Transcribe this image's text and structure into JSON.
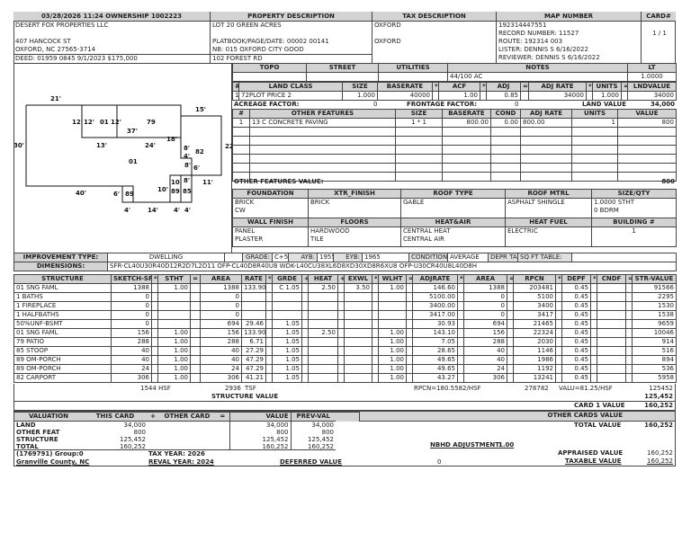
{
  "header": {
    "ownership": "03/28/2026 11:24   OWNERSHIP  1002223",
    "property_desc": "PROPERTY DESCRIPTION",
    "tax_desc": "TAX DESCRIPTION",
    "map_number": "MAP NUMBER",
    "card": "CARD#"
  },
  "owner": [
    "DESERT FOX PROPERTIES LLC",
    "",
    "407 HANCOCK ST",
    "OXFORD, NC 27565-3714",
    "DEED: 01959 0845 9/1/2023 $175,000"
  ],
  "property": [
    "LOT 20 GREEN ACRES",
    "",
    "PLATBOOK/PAGE/DATE: 00002 00141",
    "NB: 015 OXFORD CITY GOOD",
    "102 FOREST RD"
  ],
  "tax": [
    "OXFORD",
    "",
    "OXFORD"
  ],
  "map": [
    "192314447551",
    "RECORD NUMBER:  11527",
    "ROUTE:  192314 003",
    "LISTER:  DENNIS S 6/16/2022",
    "REVIEWER:  DENNIS S 6/16/2022"
  ],
  "card_value": "1 / 1",
  "site": {
    "headers": [
      "TOPO",
      "STREET",
      "UTILITIES",
      "NOTES",
      "LT"
    ],
    "values": [
      "",
      "",
      "",
      "44/100 AC",
      "1.0000"
    ]
  },
  "land": {
    "headers": [
      "#",
      "LAND CLASS",
      "SIZE",
      "BASERATE",
      "*",
      "ACF",
      "*",
      "ADJ",
      "=",
      "ADJ RATE",
      "*",
      "UNITS",
      "=",
      "LNDVALUE"
    ],
    "rows": [
      [
        "1",
        "72PLOT PRICE 2",
        "1.000",
        "40000",
        "",
        "1.00",
        "",
        "0.85",
        "",
        "34000",
        "",
        "1.000",
        "",
        "34000"
      ]
    ],
    "acreage_label": "ACREAGE FACTOR:",
    "acreage_value": "0",
    "frontage_label": "FRONTAGE FACTOR:",
    "frontage_value": "0",
    "land_value_label": "LAND VALUE",
    "land_value": "34,000"
  },
  "features": {
    "headers": [
      "#",
      "OTHER FEATURES",
      "SIZE",
      "BASERATE",
      "COND",
      "ADJ RATE",
      "UNITS",
      "VALUE"
    ],
    "rows": [
      [
        "1",
        "13 C CONCRETE PAVING",
        "1 * 1",
        "800.00",
        "0.00",
        "800.00",
        "1",
        "800"
      ],
      [
        "",
        "",
        "",
        "",
        "",
        "",
        "",
        ""
      ],
      [
        "",
        "",
        "",
        "",
        "",
        "",
        "",
        ""
      ],
      [
        "",
        "",
        "",
        "",
        "",
        "",
        "",
        ""
      ],
      [
        "",
        "",
        "",
        "",
        "",
        "",
        "",
        ""
      ],
      [
        "",
        "",
        "",
        "",
        "",
        "",
        "",
        ""
      ],
      [
        "",
        "",
        "",
        "",
        "",
        "",
        "",
        ""
      ]
    ],
    "total_label": "OTHER FEATURES VALUE:",
    "total": "800"
  },
  "building": {
    "headers1": [
      "FOUNDATION",
      "XTR_FINISH",
      "ROOF TYPE",
      "ROOF MTRL",
      "SIZE/QTY"
    ],
    "values1": [
      [
        "BRICK",
        "CW"
      ],
      [
        "BRICK",
        ""
      ],
      [
        "GABLE",
        ""
      ],
      [
        "ASPHALT SHINGLE",
        ""
      ],
      [
        "1.0000 STHT",
        "0 BDRM"
      ]
    ],
    "headers2": [
      "WALL FINISH",
      "FLOORS",
      "HEAT&AIR",
      "HEAT FUEL",
      "BUILDING #"
    ],
    "values2": [
      [
        "PANEL",
        "PLASTER"
      ],
      [
        "HARDWOOD",
        "TILE"
      ],
      [
        "CENTRAL HEAT",
        "CENTRAL AIR"
      ],
      [
        "ELECTRIC",
        ""
      ],
      [
        "",
        "1"
      ]
    ]
  },
  "improvement": {
    "type_label": "IMPROVEMENT TYPE:",
    "type": "DWELLING",
    "grade_label": "GRADE:",
    "grade": "C+5",
    "ayb_label": "AYB:",
    "ayb": "1955",
    "eyb_label": "EYB:",
    "eyb": "1965",
    "condition_label": "CONDITION:",
    "condition": "AVERAGE",
    "depr_label": "DEPR TABLE:",
    "depr": "",
    "sqft_label": "SQ FT TABLE:",
    "sqft": "",
    "dimensions_label": "DIMENSIONS:",
    "dimensions": "SFR-CL40U30R40D12R2D7L2D11 OFP-CL40D8R40U8 WDK-L40CU38XL6D8XD30XD8R6XU8 OFP-U30CR40U8L40D8H"
  },
  "structure": {
    "headers": [
      "STRUCTURE",
      "SKETCH-SF",
      "*",
      "STHT",
      "=",
      "AREA",
      "RATE",
      "*",
      "GRDE",
      "+",
      "HEAT",
      "+",
      "EXWL",
      "*",
      "WLHT",
      "=",
      "ADJRATE",
      "*",
      "AREA",
      "=",
      "RPCN",
      "*",
      "DEPF",
      "*",
      "CNDF",
      "=",
      "STR-VALUE"
    ],
    "rows": [
      [
        "01  SNG FAML",
        "1388",
        "",
        "1.00",
        "",
        "1388",
        "133.90",
        "",
        "C   1.05",
        "",
        "2.50",
        "",
        "3.50",
        "",
        "1.00",
        "",
        "146.60",
        "",
        "1388",
        "",
        "203481",
        "",
        "0.45",
        "",
        "",
        "",
        "91566"
      ],
      [
        "1  BATHS",
        "0",
        "",
        "",
        "",
        "0",
        "",
        "",
        "",
        "",
        "",
        "",
        "",
        "",
        "",
        "",
        "5100.00",
        "",
        "0",
        "",
        "5100",
        "",
        "0.45",
        "",
        "",
        "",
        "2295"
      ],
      [
        "1  FIREPLACE",
        "0",
        "",
        "",
        "",
        "0",
        "",
        "",
        "",
        "",
        "",
        "",
        "",
        "",
        "",
        "",
        "3400.00",
        "",
        "0",
        "",
        "3400",
        "",
        "0.45",
        "",
        "",
        "",
        "1530"
      ],
      [
        "1  HALFBATHS",
        "0",
        "",
        "",
        "",
        "0",
        "",
        "",
        "",
        "",
        "",
        "",
        "",
        "",
        "",
        "",
        "3417.00",
        "",
        "0",
        "",
        "3417",
        "",
        "0.45",
        "",
        "",
        "",
        "1538"
      ],
      [
        "50%UNF-BSMT",
        "0",
        "",
        "",
        "",
        "694",
        "29.46",
        "",
        "1.05",
        "",
        "",
        "",
        "",
        "",
        "",
        "",
        "30.93",
        "",
        "694",
        "",
        "21465",
        "",
        "0.45",
        "",
        "",
        "",
        "9659"
      ],
      [
        "01  SNG FAML",
        "156",
        "",
        "1.00",
        "",
        "156",
        "133.90",
        "",
        "1.05",
        "",
        "2.50",
        "",
        "",
        "",
        "1.00",
        "",
        "143.10",
        "",
        "156",
        "",
        "22324",
        "",
        "0.45",
        "",
        "",
        "",
        "10046"
      ],
      [
        "79  PATIO",
        "288",
        "",
        "1.00",
        "",
        "288",
        "6.71",
        "",
        "1.05",
        "",
        "",
        "",
        "",
        "",
        "1.00",
        "",
        "7.05",
        "",
        "288",
        "",
        "2030",
        "",
        "0.45",
        "",
        "",
        "",
        "914"
      ],
      [
        "85  STOOP",
        "40",
        "",
        "1.00",
        "",
        "40",
        "27.29",
        "",
        "1.05",
        "",
        "",
        "",
        "",
        "",
        "1.00",
        "",
        "28.65",
        "",
        "40",
        "",
        "1146",
        "",
        "0.45",
        "",
        "",
        "",
        "516"
      ],
      [
        "89  OM-PORCH",
        "40",
        "",
        "1.00",
        "",
        "40",
        "47.29",
        "",
        "1.05",
        "",
        "",
        "",
        "",
        "",
        "1.00",
        "",
        "49.65",
        "",
        "40",
        "",
        "1986",
        "",
        "0.45",
        "",
        "",
        "",
        "894"
      ],
      [
        "89  OM-PORCH",
        "24",
        "",
        "1.00",
        "",
        "24",
        "47.29",
        "",
        "1.05",
        "",
        "",
        "",
        "",
        "",
        "1.00",
        "",
        "49.65",
        "",
        "24",
        "",
        "1192",
        "",
        "0.45",
        "",
        "",
        "",
        "536"
      ],
      [
        "82  CARPORT",
        "306",
        "",
        "1.00",
        "",
        "306",
        "41.21",
        "",
        "1.05",
        "",
        "",
        "",
        "",
        "",
        "1.00",
        "",
        "43.27",
        "",
        "306",
        "",
        "13241",
        "",
        "0.45",
        "",
        "",
        "",
        "5958"
      ]
    ],
    "hsf": "1544",
    "hsf_label": "HSF",
    "tsf": "2936",
    "tsf_label": "TSF",
    "rpcn_per": "RPCN=180.5582/HSF",
    "rpcn_total": "278782",
    "valu_per": "VALU=81.25/HSF",
    "str_total": "125452",
    "structure_value_label": "STRUCTURE VALUE",
    "structure_value": "125,452",
    "card_value_label": "CARD  1  VALUE",
    "card_value": "160,252"
  },
  "valuation": {
    "headers": [
      "VALUATION",
      "THIS CARD",
      "+",
      "OTHER CARD",
      "=",
      "VALUE",
      "PREV-VAL"
    ],
    "rows": [
      [
        "LAND",
        "34,000",
        "",
        "",
        "",
        "34,000",
        "34,000"
      ],
      [
        "OTHER FEAT",
        "800",
        "",
        "",
        "",
        "800",
        "800"
      ],
      [
        "STRUCTURE",
        "125,452",
        "",
        "",
        "",
        "125,452",
        "125,452"
      ],
      [
        "TOTAL",
        "160,252",
        "",
        "",
        "",
        "160,252",
        "160,252"
      ]
    ],
    "group": "(1769791) Group:0",
    "county": "Granville County, NC",
    "tax_year": "TAX YEAR: 2026",
    "reval_year": "REVAL YEAR: 2024",
    "deferred_label": "DEFERRED VALUE",
    "deferred": "0",
    "other_cards_label": "OTHER CARDS VALUE",
    "total_value_label": "TOTAL VALUE",
    "total_value": "160,252",
    "nbhd_label": "NBHD ADJUSTMENT:",
    "nbhd": "1.00",
    "appraised_label": "APPRAISED VALUE",
    "appraised": "160,252",
    "taxable_label": "TAXABLE VALUE",
    "taxable": "160,252"
  },
  "sketch": {
    "labels": [
      "21'",
      "15'",
      "12'",
      "12'",
      "01",
      "12'",
      "79",
      "37'",
      "18'",
      "30'",
      "13'",
      "24'",
      "8'",
      "82",
      "22'",
      "4'",
      "01",
      "8'",
      "6'",
      "11'",
      "40'",
      "6'",
      "89",
      "10'",
      "10",
      "89",
      "85",
      "8'",
      "4'",
      "14'",
      "4'",
      "4'"
    ]
  }
}
